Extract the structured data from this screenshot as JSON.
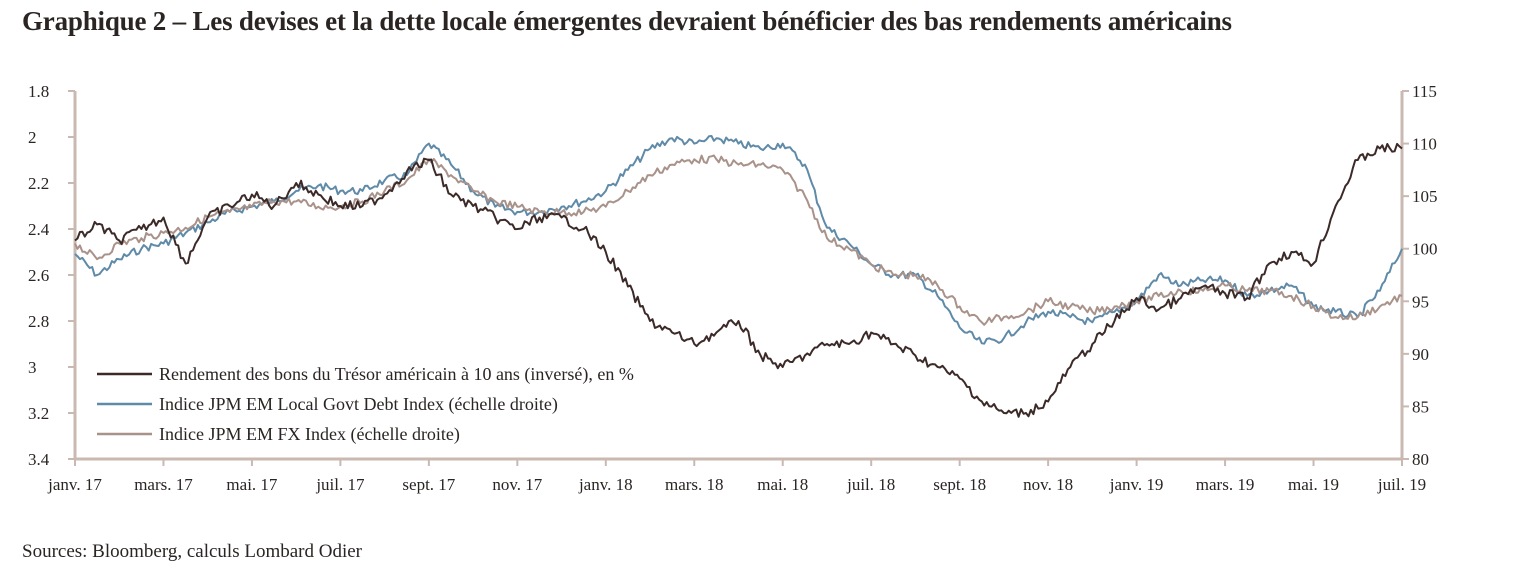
{
  "title": "Graphique 2 – Les devises et la dette locale émergentes devraient bénéficier des bas rendements américains",
  "source": "Sources: Bloomberg, calculs Lombard Odier",
  "colors": {
    "axis": "#c9b9b1",
    "text": "#2a2523"
  },
  "chart_data": {
    "type": "line",
    "x_ticks": [
      "janv. 17",
      "mars. 17",
      "mai. 17",
      "juil. 17",
      "sept. 17",
      "nov. 17",
      "janv. 18",
      "mars. 18",
      "mai. 18",
      "juil. 18",
      "sept. 18",
      "nov. 18",
      "janv. 19",
      "mars. 19",
      "mai. 19",
      "juil. 19"
    ],
    "x_tick_months": [
      0,
      2,
      4,
      6,
      8,
      10,
      12,
      14,
      16,
      18,
      20,
      22,
      24,
      26,
      28,
      30
    ],
    "xlim_months": [
      0,
      30
    ],
    "y_left": {
      "ticks": [
        "1.8",
        "2",
        "2.2",
        "2.4",
        "2.6",
        "2.8",
        "3",
        "3.2",
        "3.4"
      ],
      "min": 1.8,
      "max": 3.4,
      "inverted": true
    },
    "y_right": {
      "ticks": [
        "115",
        "110",
        "105",
        "100",
        "95",
        "90",
        "85",
        "80"
      ],
      "min": 80,
      "max": 115
    },
    "legend": {
      "placement": "bottom-left"
    },
    "series": [
      {
        "name": "Rendement des bons du Trésor américain à 10 ans (inversé), en %",
        "axis": "left",
        "color": "#3b2a28",
        "x": [
          0,
          0.5,
          1,
          1.5,
          2,
          2.5,
          3,
          3.5,
          4,
          4.5,
          5,
          5.5,
          6,
          6.5,
          7,
          7.5,
          8,
          8.5,
          9,
          9.5,
          10,
          10.5,
          11,
          11.5,
          12,
          12.5,
          13,
          13.5,
          14,
          14.5,
          15,
          15.5,
          16,
          16.5,
          17,
          17.5,
          18,
          18.5,
          19,
          19.5,
          20,
          20.5,
          21,
          21.5,
          22,
          22.5,
          23,
          23.5,
          24,
          24.5,
          25,
          25.5,
          26,
          26.5,
          27,
          27.5,
          28,
          28.5,
          29,
          29.5,
          30
        ],
        "values": [
          2.45,
          2.38,
          2.45,
          2.4,
          2.35,
          2.55,
          2.35,
          2.3,
          2.25,
          2.3,
          2.2,
          2.25,
          2.3,
          2.3,
          2.25,
          2.15,
          2.1,
          2.25,
          2.3,
          2.35,
          2.4,
          2.35,
          2.35,
          2.4,
          2.5,
          2.65,
          2.8,
          2.85,
          2.9,
          2.85,
          2.8,
          2.95,
          3.0,
          2.95,
          2.9,
          2.9,
          2.85,
          2.9,
          2.95,
          3.0,
          3.05,
          3.15,
          3.2,
          3.2,
          3.15,
          3.0,
          2.9,
          2.8,
          2.7,
          2.75,
          2.7,
          2.65,
          2.68,
          2.7,
          2.55,
          2.5,
          2.55,
          2.3,
          2.1,
          2.05,
          2.05
        ]
      },
      {
        "name": "Indice JPM EM Local Govt Debt Index (échelle droite)",
        "axis": "right",
        "color": "#5f8aa8",
        "x": [
          0,
          0.5,
          1,
          1.5,
          2,
          2.5,
          3,
          3.5,
          4,
          4.5,
          5,
          5.5,
          6,
          6.5,
          7,
          7.5,
          8,
          8.5,
          9,
          9.5,
          10,
          10.5,
          11,
          11.5,
          12,
          12.5,
          13,
          13.5,
          14,
          14.5,
          15,
          15.5,
          16,
          16.5,
          17,
          17.5,
          18,
          18.5,
          19,
          19.5,
          20,
          20.5,
          21,
          21.5,
          22,
          22.5,
          23,
          23.5,
          24,
          24.5,
          25,
          25.5,
          26,
          26.5,
          27,
          27.5,
          28,
          28.5,
          29,
          29.5,
          30
        ],
        "values": [
          99.5,
          97.5,
          99.0,
          100.0,
          100.5,
          101.5,
          102.5,
          103.5,
          104.0,
          104.5,
          105.5,
          106.0,
          105.5,
          105.5,
          106.5,
          107.0,
          110.0,
          108.0,
          105.5,
          104.0,
          103.5,
          103.5,
          104.0,
          104.5,
          105.5,
          107.5,
          109.5,
          110.5,
          110.0,
          110.5,
          110.0,
          109.5,
          110.0,
          108.0,
          102.0,
          100.5,
          98.5,
          97.5,
          97.5,
          95.5,
          92.5,
          91.0,
          91.5,
          93.0,
          94.0,
          93.5,
          93.0,
          94.0,
          95.0,
          97.5,
          96.5,
          97.0,
          97.0,
          95.5,
          96.0,
          96.5,
          94.5,
          94.0,
          93.5,
          96.0,
          100.0
        ]
      },
      {
        "name": "Indice JPM EM FX Index (échelle droite)",
        "axis": "right",
        "color": "#a8928a",
        "x": [
          0,
          0.5,
          1,
          1.5,
          2,
          2.5,
          3,
          3.5,
          4,
          4.5,
          5,
          5.5,
          6,
          6.5,
          7,
          7.5,
          8,
          8.5,
          9,
          9.5,
          10,
          10.5,
          11,
          11.5,
          12,
          12.5,
          13,
          13.5,
          14,
          14.5,
          15,
          15.5,
          16,
          16.5,
          17,
          17.5,
          18,
          18.5,
          19,
          19.5,
          20,
          20.5,
          21,
          21.5,
          22,
          22.5,
          23,
          23.5,
          24,
          24.5,
          25,
          25.5,
          26,
          26.5,
          27,
          27.5,
          28,
          28.5,
          29,
          29.5,
          30
        ],
        "values": [
          100.5,
          99.0,
          100.5,
          101.0,
          101.5,
          102.0,
          103.0,
          103.5,
          104.0,
          104.5,
          104.5,
          104.0,
          104.0,
          104.5,
          105.5,
          106.5,
          108.5,
          107.0,
          105.5,
          104.5,
          104.0,
          103.5,
          103.5,
          103.5,
          104.0,
          105.5,
          107.0,
          108.0,
          108.5,
          108.5,
          108.0,
          108.0,
          107.5,
          105.0,
          101.0,
          100.0,
          98.5,
          97.5,
          97.5,
          96.5,
          94.5,
          93.0,
          93.5,
          94.0,
          95.0,
          94.5,
          94.0,
          94.5,
          95.0,
          95.5,
          96.0,
          96.0,
          96.5,
          96.0,
          96.0,
          95.5,
          94.5,
          93.5,
          93.5,
          94.5,
          95.5
        ]
      }
    ]
  }
}
